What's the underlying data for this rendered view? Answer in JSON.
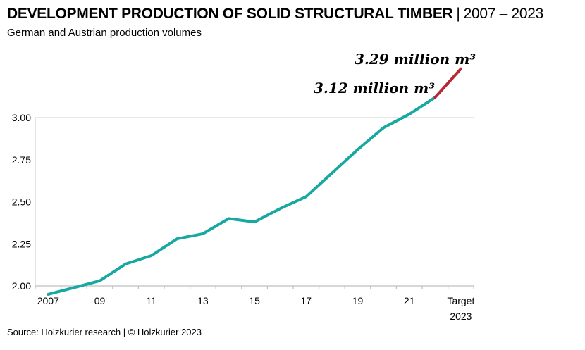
{
  "header": {
    "title_main": "DEVELOPMENT PRODUCTION OF SOLID STRUCTURAL TIMBER",
    "title_separator": "|",
    "title_period": "2007 – 2023",
    "subtitle": "German and Austrian production volumes"
  },
  "chart_data": {
    "type": "line",
    "title": "DEVELOPMENT PRODUCTION OF SOLID STRUCTURAL TIMBER | 2007 – 2023",
    "subtitle": "German and Austrian production volumes",
    "unit": "million m³",
    "categories": [
      "2007",
      "2008",
      "2009",
      "2010",
      "2011",
      "2012",
      "2013",
      "2014",
      "2015",
      "2016",
      "2017",
      "2018",
      "2019",
      "2020",
      "2021",
      "2022",
      "Target 2023"
    ],
    "values": [
      1.95,
      1.99,
      2.03,
      2.13,
      2.18,
      2.28,
      2.31,
      2.4,
      2.38,
      2.46,
      2.53,
      2.67,
      2.81,
      2.94,
      3.02,
      3.12,
      3.29
    ],
    "target_segment_from_index": 15,
    "ylim": [
      2.0,
      3.0
    ],
    "ytick_labels": [
      "3.00",
      "2.75",
      "2.50",
      "2.25",
      "2.00"
    ],
    "xtick_labels": [
      "2007",
      "09",
      "11",
      "13",
      "15",
      "17",
      "19",
      "21"
    ],
    "target_label": [
      "Target",
      "2023"
    ],
    "line_color": "#17A8A2",
    "target_color": "#B52935",
    "grid_color": "#D9D9D9",
    "axis_color": "#BFBFBF",
    "grid": "single horizontal gridline at 3.00, no vertical gridlines",
    "legend": "none",
    "annotations": [
      {
        "text": "3.12 million m³",
        "category": "2022",
        "value": 3.12
      },
      {
        "text": "3.29 million m³",
        "category": "Target 2023",
        "value": 3.29
      }
    ]
  },
  "footer": {
    "source": "Source: Holzkurier research | © Holzkurier 2023"
  }
}
